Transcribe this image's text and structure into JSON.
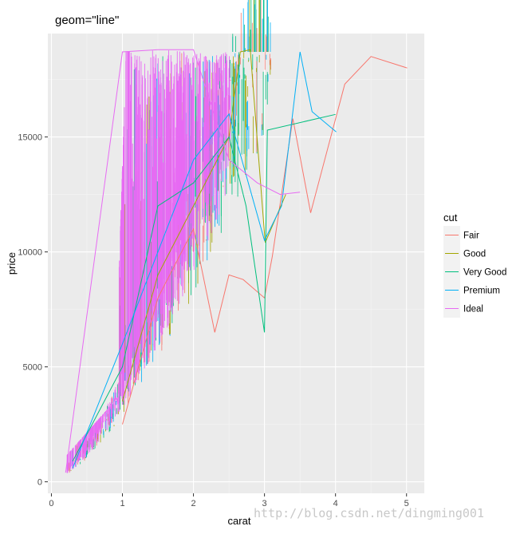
{
  "chart_data": {
    "type": "line",
    "title": "geom=\"line\"",
    "xlabel": "carat",
    "ylabel": "price",
    "xlim": [
      -0.05,
      5.25
    ],
    "ylim": [
      -500,
      19500
    ],
    "x_ticks": [
      0,
      1,
      2,
      3,
      4,
      5
    ],
    "x_tick_labels": [
      "0",
      "1",
      "2",
      "3",
      "4",
      "5"
    ],
    "y_ticks": [
      0,
      5000,
      10000,
      15000
    ],
    "y_tick_labels": [
      "0",
      "5000",
      "10000",
      "15000"
    ],
    "grid": true,
    "legend": {
      "title": "cut",
      "placement": "right"
    },
    "series": [
      {
        "name": "Fair",
        "color": "#F8766D",
        "x": [
          1.0,
          1.5,
          2.0,
          2.3,
          2.5,
          2.7,
          3.0,
          3.11,
          3.4,
          3.65,
          4.13,
          4.5,
          5.01
        ],
        "y": [
          2500,
          8000,
          11000,
          6500,
          9000,
          8800,
          8000,
          9800,
          15800,
          11700,
          17300,
          18500,
          18000
        ]
      },
      {
        "name": "Good",
        "color": "#A3A500",
        "x": [
          1.0,
          1.5,
          2.0,
          2.5,
          2.66,
          2.8,
          3.01,
          3.3
        ],
        "y": [
          3500,
          9000,
          12000,
          15000,
          18700,
          18800,
          10400,
          12500
        ]
      },
      {
        "name": "Very Good",
        "color": "#00BF7D",
        "x": [
          0.3,
          1.0,
          1.5,
          2.0,
          2.5,
          2.74,
          3.0,
          3.04,
          4.0
        ],
        "y": [
          900,
          5000,
          12000,
          13000,
          15000,
          12000,
          6500,
          15300,
          15984
        ]
      },
      {
        "name": "Premium",
        "color": "#00B0F6",
        "x": [
          0.3,
          1.0,
          1.5,
          2.0,
          2.5,
          3.0,
          3.24,
          3.5,
          3.67,
          4.01
        ],
        "y": [
          600,
          6000,
          10000,
          14000,
          16000,
          10500,
          12000,
          18700,
          16100,
          15223
        ]
      },
      {
        "name": "Ideal",
        "color": "#E76BF3",
        "x": [
          0.2,
          1.0,
          1.5,
          2.0,
          2.5,
          2.9,
          3.22,
          3.5
        ],
        "y": [
          400,
          18700,
          18800,
          18800,
          14000,
          13000,
          12500,
          12600
        ]
      }
    ]
  },
  "watermark": "http://blog.csdn.net/dingming001"
}
